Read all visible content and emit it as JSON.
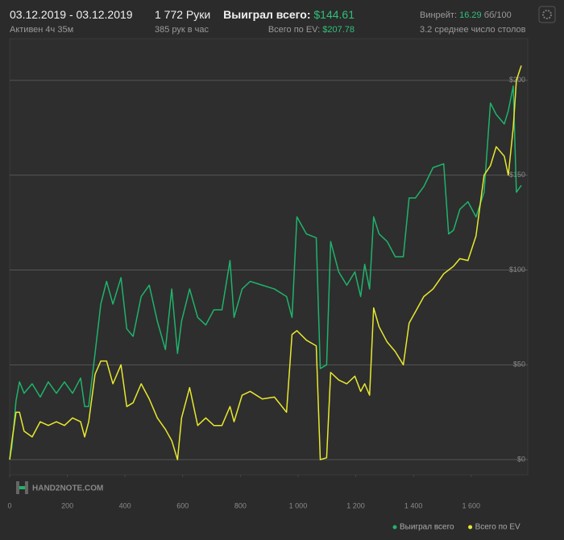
{
  "header": {
    "dates": "03.12.2019 - 03.12.2019",
    "active": "Активен 4ч 35м",
    "hands": "1 772 Руки",
    "hands_per_hour": "385 рук в час",
    "won_label": "Выиграл всего:",
    "won_value": "$144.61",
    "ev_label": "Всего по EV:",
    "ev_value": "$207.78",
    "winrate_label": "Винрейт:",
    "winrate_value": "16.29",
    "winrate_unit": "бб/100",
    "tables": "3.2 среднее число столов",
    "logo": "HAND2NOTE.COM"
  },
  "chart_data": {
    "type": "line",
    "x": [
      0,
      8,
      22,
      34,
      50,
      78,
      106,
      134,
      162,
      190,
      218,
      246,
      260,
      274,
      296,
      316,
      336,
      358,
      386,
      406,
      428,
      456,
      484,
      512,
      540,
      562,
      582,
      596,
      624,
      652,
      680,
      708,
      736,
      764,
      778,
      806,
      834,
      876,
      918,
      960,
      979,
      996,
      1029,
      1063,
      1077,
      1099,
      1113,
      1141,
      1169,
      1197,
      1217,
      1231,
      1248,
      1262,
      1281,
      1309,
      1337,
      1365,
      1385,
      1407,
      1436,
      1468,
      1505,
      1522,
      1539,
      1561,
      1589,
      1617,
      1645,
      1667,
      1687,
      1715,
      1729,
      1746,
      1757,
      1774
    ],
    "series": [
      {
        "name": "Выиграл всего",
        "color": "#1fb36b",
        "values": [
          0,
          7,
          31,
          41,
          35,
          40,
          33,
          41,
          35,
          41,
          35,
          43,
          28,
          28,
          56,
          82,
          94,
          82,
          96,
          69,
          65,
          86,
          92,
          73,
          58,
          90,
          56,
          73,
          90,
          75,
          71,
          79,
          79,
          105,
          75,
          90,
          94,
          92,
          90,
          86,
          75,
          128,
          119,
          117,
          48,
          50,
          115,
          99,
          92,
          99,
          86,
          103,
          90,
          128,
          119,
          115,
          107,
          107,
          138,
          138,
          144,
          154,
          156,
          119,
          121,
          132,
          136,
          128,
          141,
          188,
          182,
          177,
          184,
          197,
          141,
          144.61
        ]
      },
      {
        "name": "Всего по EV",
        "color": "#e8e830",
        "values": [
          0,
          10,
          25,
          25,
          15,
          12,
          20,
          18,
          20,
          18,
          22,
          20,
          12,
          20,
          45,
          52,
          52,
          40,
          50,
          28,
          30,
          40,
          32,
          22,
          16,
          10,
          0,
          22,
          38,
          18,
          22,
          18,
          18,
          28,
          20,
          34,
          36,
          32,
          33,
          25,
          66,
          68,
          63,
          60,
          0,
          1,
          46,
          42,
          40,
          44,
          36,
          40,
          34,
          80,
          70,
          62,
          57,
          50,
          72,
          78,
          86,
          90,
          98,
          100,
          102,
          106,
          105,
          118,
          150,
          155,
          165,
          160,
          150,
          175,
          200,
          207.78
        ]
      }
    ],
    "xlim": [
      0,
      1774
    ],
    "xticks": [
      0,
      200,
      400,
      600,
      800,
      {
        "value": 1000,
        "label": "1 000"
      },
      {
        "value": 1200,
        "label": "1 200"
      },
      {
        "value": 1400,
        "label": "1 400"
      },
      {
        "value": 1600,
        "label": "1 600"
      }
    ],
    "ylim": [
      -8,
      222
    ],
    "yticks": [
      {
        "value": 0,
        "label": "$0"
      },
      {
        "value": 50,
        "label": "$50"
      },
      {
        "value": 100,
        "label": "$100"
      },
      {
        "value": 150,
        "label": "$150"
      },
      {
        "value": 200,
        "label": "$200"
      }
    ],
    "grid": true,
    "legend": "bottom-right"
  }
}
